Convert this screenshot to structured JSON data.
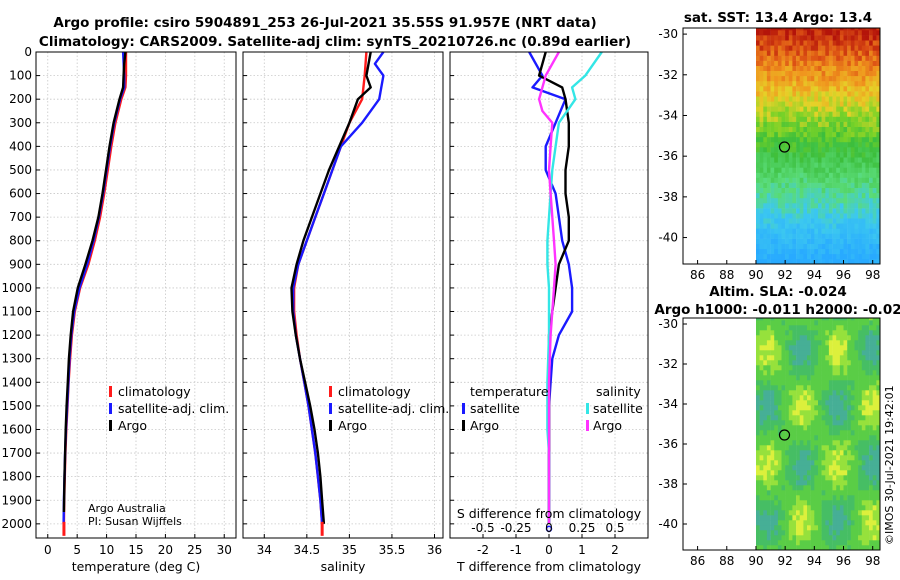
{
  "header": {
    "title_line1": "Argo profile: csiro 5904891_253 26-Jul-2021 35.55S 91.957E (NRT data)",
    "title_line2": "Climatology: CARS2009. Satellite-adj clim: synTS_20210726.nc (0.89d earlier)"
  },
  "credits": {
    "line1": "Argo Australia",
    "line2": "PI: Susan Wijffels",
    "stamp": "©IMOS 30-Jul-2021 19:42:01"
  },
  "colors": {
    "climatology": "#ff1a1a",
    "satellite": "#1a1aff",
    "argo": "#000000",
    "satellite_salinity": "#33e6e6",
    "argo_salinity": "#ff33ff"
  },
  "chart_data": [
    {
      "type": "line",
      "id": "temperature",
      "xlabel": "temperature (deg C)",
      "ylabel": "",
      "xlim": [
        -2,
        32
      ],
      "ylim": [
        2060,
        0
      ],
      "xticks": [
        0,
        5,
        10,
        15,
        20,
        25,
        30
      ],
      "yticks": [
        0,
        100,
        200,
        300,
        400,
        500,
        600,
        700,
        800,
        900,
        1000,
        1100,
        1200,
        1300,
        1400,
        1500,
        1600,
        1700,
        1800,
        1900,
        2000
      ],
      "grid": true,
      "legend": {
        "position": "center-right",
        "entries": [
          "climatology",
          "satellite-adj. clim.",
          "Argo"
        ]
      },
      "series": [
        {
          "name": "climatology",
          "color": "#ff1a1a",
          "x": [
            13.3,
            13.3,
            13.2,
            12.5,
            11.5,
            10.8,
            10.2,
            9.6,
            8.9,
            8.0,
            6.9,
            5.5,
            4.6,
            4.1,
            3.8,
            3.55,
            3.35,
            3.15,
            3.0,
            2.9,
            2.8,
            2.75
          ],
          "y": [
            0,
            100,
            150,
            200,
            300,
            400,
            500,
            600,
            700,
            800,
            900,
            1000,
            1100,
            1200,
            1300,
            1400,
            1500,
            1600,
            1700,
            1800,
            1900,
            2000
          ]
        },
        {
          "name": "satellite-adj. clim.",
          "color": "#1a1aff",
          "x": [
            12.8,
            13.0,
            13.0,
            12.3,
            11.3,
            10.6,
            10.0,
            9.4,
            8.7,
            7.8,
            6.7,
            5.4,
            4.5,
            4.0,
            3.7,
            3.5,
            3.3,
            3.1,
            2.95,
            2.85,
            2.75,
            2.7
          ],
          "y": [
            0,
            100,
            150,
            200,
            300,
            400,
            500,
            600,
            700,
            800,
            900,
            1000,
            1100,
            1200,
            1300,
            1400,
            1500,
            1600,
            1700,
            1800,
            1900,
            2000
          ]
        },
        {
          "name": "Argo",
          "color": "#000000",
          "x": [
            13.2,
            13.0,
            12.9,
            12.8,
            12.2,
            11.2,
            10.5,
            9.9,
            9.3,
            8.6,
            7.6,
            6.4,
            5.1,
            4.3,
            3.9,
            3.6,
            3.4,
            3.2,
            3.05,
            2.95,
            2.85,
            2.75
          ],
          "y": [
            0,
            50,
            100,
            150,
            200,
            300,
            400,
            500,
            600,
            700,
            800,
            900,
            1000,
            1100,
            1200,
            1300,
            1400,
            1500,
            1600,
            1700,
            1800,
            1950
          ]
        }
      ]
    },
    {
      "type": "line",
      "id": "salinity",
      "xlabel": "salinity",
      "ylabel": "",
      "xlim": [
        33.75,
        36.1
      ],
      "ylim": [
        2060,
        0
      ],
      "xticks": [
        34,
        34.5,
        35,
        35.5,
        36
      ],
      "grid": true,
      "legend": {
        "position": "center-right",
        "entries": [
          "climatology",
          "satellite-adj. clim.",
          "Argo"
        ]
      },
      "series": [
        {
          "name": "climatology",
          "color": "#ff1a1a",
          "x": [
            35.2,
            35.18,
            35.15,
            35.0,
            34.9,
            34.8,
            34.7,
            34.6,
            34.5,
            34.4,
            34.35,
            34.35,
            34.38,
            34.42,
            34.47,
            34.52,
            34.56,
            34.6,
            34.63,
            34.66,
            34.68
          ],
          "y": [
            0,
            100,
            200,
            300,
            400,
            500,
            600,
            700,
            800,
            900,
            1000,
            1100,
            1200,
            1300,
            1400,
            1500,
            1600,
            1700,
            1800,
            1900,
            2000
          ]
        },
        {
          "name": "satellite-adj. clim.",
          "color": "#1a1aff",
          "x": [
            35.4,
            35.3,
            35.4,
            35.35,
            35.15,
            34.9,
            34.8,
            34.7,
            34.6,
            34.5,
            34.4,
            34.34,
            34.34,
            34.37,
            34.42,
            34.47,
            34.52,
            34.56,
            34.6,
            34.63,
            34.66,
            34.68
          ],
          "y": [
            0,
            50,
            100,
            200,
            300,
            400,
            500,
            600,
            700,
            800,
            900,
            1000,
            1100,
            1200,
            1300,
            1400,
            1500,
            1600,
            1700,
            1800,
            1900,
            2000
          ]
        },
        {
          "name": "Argo",
          "color": "#000000",
          "x": [
            35.25,
            35.2,
            35.25,
            35.1,
            35.0,
            34.88,
            34.76,
            34.66,
            34.56,
            34.46,
            34.38,
            34.32,
            34.33,
            34.37,
            34.42,
            34.48,
            34.54,
            34.59,
            34.63,
            34.66,
            34.68,
            34.7
          ],
          "y": [
            0,
            100,
            150,
            200,
            300,
            400,
            500,
            600,
            700,
            800,
            900,
            1000,
            1100,
            1200,
            1300,
            1400,
            1500,
            1600,
            1700,
            1800,
            1900,
            2000
          ]
        }
      ]
    },
    {
      "type": "line",
      "id": "difference",
      "xlabel": "T difference from climatology",
      "ylabel": "",
      "secondary_xlabel": "S difference from climatology",
      "xlim": [
        -3,
        3
      ],
      "ylim": [
        2060,
        0
      ],
      "xticks": [
        -2,
        -1,
        0,
        1,
        2
      ],
      "secondary_xticks": [
        -0.5,
        -0.25,
        0,
        0.25,
        0.5
      ],
      "grid": true,
      "legend": {
        "position": "center",
        "temperature_title": "temperature",
        "salinity_title": "salinity",
        "entries": [
          "satellite",
          "Argo",
          "satellite",
          "Argo"
        ]
      },
      "series": [
        {
          "name": "satellite",
          "group": "temperature",
          "color": "#1a1aff",
          "x": [
            -0.6,
            -0.2,
            -0.5,
            0.5,
            0.2,
            -0.1,
            -0.1,
            0.2,
            0.3,
            0.4,
            0.6,
            0.7,
            0.7,
            0.3,
            0.1,
            0.05,
            0.0,
            0.0,
            0.0,
            0.0,
            0.0
          ],
          "y": [
            0,
            100,
            150,
            200,
            300,
            400,
            500,
            600,
            700,
            800,
            900,
            1000,
            1100,
            1200,
            1300,
            1400,
            1500,
            1600,
            1700,
            1800,
            2000
          ]
        },
        {
          "name": "Argo",
          "group": "temperature",
          "color": "#000000",
          "x": [
            -0.1,
            -0.3,
            0.4,
            0.5,
            0.6,
            0.6,
            0.5,
            0.5,
            0.6,
            0.6,
            0.3,
            0.2,
            0.1,
            0.0,
            0.0,
            0.0,
            0.0,
            0.0,
            0.0,
            0.0
          ],
          "y": [
            0,
            100,
            150,
            200,
            300,
            400,
            500,
            600,
            700,
            800,
            900,
            1000,
            1100,
            1200,
            1300,
            1400,
            1500,
            1600,
            1800,
            2000
          ]
        },
        {
          "name": "satellite",
          "group": "salinity",
          "color": "#33e6e6",
          "x": [
            1.6,
            1.1,
            0.7,
            0.8,
            0.3,
            0.2,
            0.1,
            0.05,
            0.0,
            -0.05,
            -0.05,
            0.0,
            0.0,
            -0.05,
            -0.05,
            0.0,
            0.0,
            0.0,
            0.0
          ],
          "y": [
            0,
            100,
            150,
            200,
            300,
            400,
            500,
            600,
            700,
            800,
            900,
            1000,
            1200,
            1400,
            1600,
            1700,
            1800,
            1900,
            2000
          ]
        },
        {
          "name": "Argo",
          "group": "salinity",
          "color": "#ff33ff",
          "x": [
            0.3,
            -0.1,
            -0.3,
            -0.2,
            0.1,
            0.05,
            0.0,
            0.05,
            0.1,
            0.15,
            0.2,
            0.15,
            0.1,
            0.05,
            0.0,
            0.0,
            0.0
          ],
          "y": [
            0,
            100,
            200,
            250,
            300,
            400,
            500,
            600,
            700,
            800,
            900,
            1000,
            1100,
            1200,
            1400,
            1600,
            2000
          ]
        }
      ]
    },
    {
      "type": "heatmap",
      "id": "sst_map",
      "title": "sat. SST: 13.4 Argo: 13.4",
      "xlim": [
        85,
        98.5
      ],
      "ylim": [
        -41.3,
        -29.7
      ],
      "xticks": [
        86,
        88,
        90,
        92,
        94,
        96,
        98
      ],
      "yticks": [
        -30,
        -32,
        -34,
        -36,
        -38,
        -40
      ],
      "profile_marker": {
        "lon": 91.957,
        "lat": -35.55
      }
    },
    {
      "type": "heatmap",
      "id": "sla_map",
      "title": "Altim. SLA: -0.024",
      "subtitle": "Argo h1000: -0.011 h2000: -0.02",
      "xlim": [
        85,
        98.5
      ],
      "ylim": [
        -41.3,
        -29.7
      ],
      "xticks": [
        86,
        88,
        90,
        92,
        94,
        96,
        98
      ],
      "yticks": [
        -30,
        -32,
        -34,
        -36,
        -38,
        -40
      ],
      "profile_marker": {
        "lon": 91.957,
        "lat": -35.55
      }
    }
  ]
}
